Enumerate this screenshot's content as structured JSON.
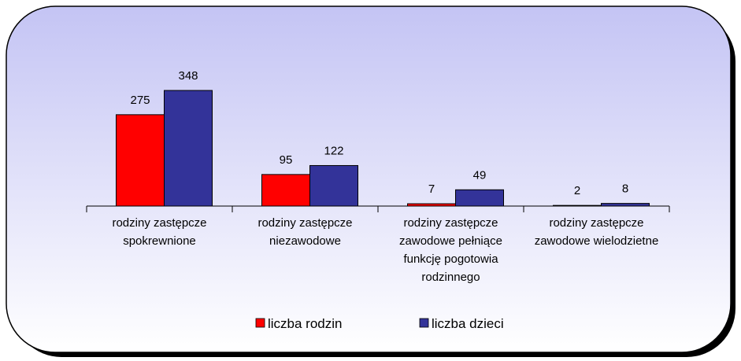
{
  "chart_data": {
    "type": "bar",
    "categories": [
      "rodziny zastępcze spokrewnione",
      "rodziny zastępcze niezawodowe",
      "rodziny zastępcze zawodowe pełniące funkcję pogotowia rodzinnego",
      "rodziny zastępcze zawodowe wielodzietne"
    ],
    "series": [
      {
        "name": "liczba rodzin",
        "color": "#ff0000",
        "values": [
          275,
          95,
          7,
          2
        ]
      },
      {
        "name": "liczba dzieci",
        "color": "#333399",
        "values": [
          348,
          122,
          49,
          8
        ]
      }
    ]
  }
}
